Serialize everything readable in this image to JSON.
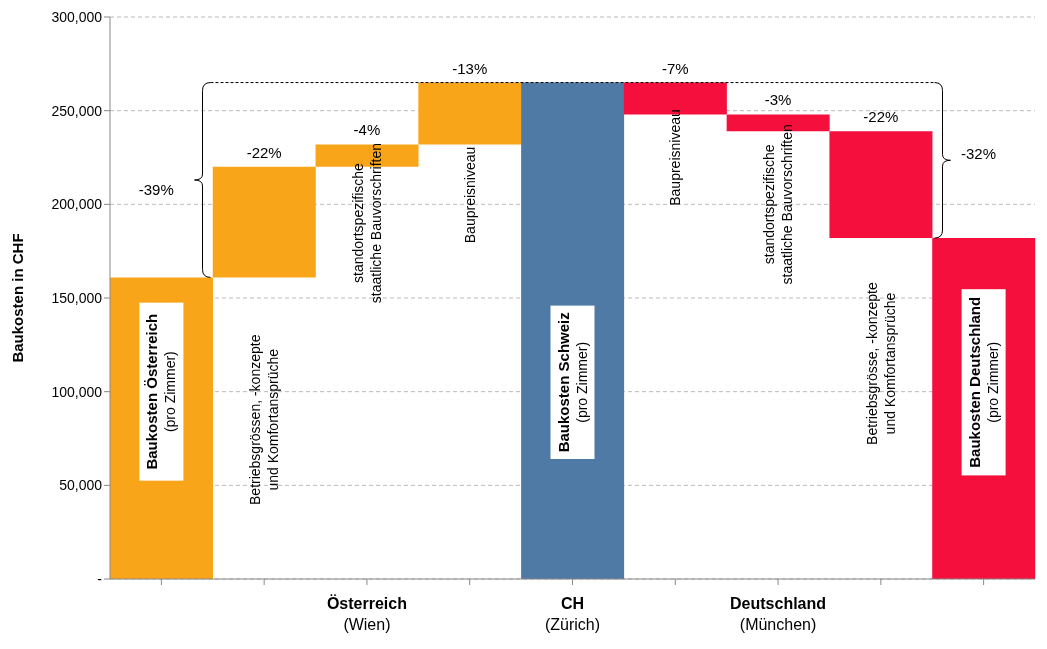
{
  "chart_data": {
    "type": "bar",
    "ylabel": "Baukosten in CHF",
    "categories": [
      null,
      null,
      "Österreich\n(Wien)",
      null,
      "CH\n(Zürich)",
      null,
      "Deutschland\n(München)",
      null,
      null
    ],
    "values": [
      161000,
      59000,
      12000,
      33000,
      265000,
      17000,
      9000,
      57000,
      182000
    ],
    "base": [
      0,
      161000,
      220000,
      232000,
      0,
      248000,
      239000,
      182000,
      0
    ],
    "colors": [
      "#f9a51a",
      "#f9a51a",
      "#f9a51a",
      "#f9a51a",
      "#4f7aa6",
      "#f50f3d",
      "#f50f3d",
      "#f50f3d",
      "#f50f3d"
    ],
    "ref_lines": [
      {
        "axis": "y",
        "value": 265000,
        "line_style": "dashed",
        "color": "#000000"
      }
    ],
    "ylim": [
      0,
      300000
    ],
    "yticks": [
      {
        "value": 0,
        "label": "-"
      },
      {
        "value": 50000,
        "label": "50,000"
      },
      {
        "value": 100000,
        "label": "100,000"
      },
      {
        "value": 150000,
        "label": "150,000"
      },
      {
        "value": 200000,
        "label": "200,000"
      },
      {
        "value": 250000,
        "label": "250,000"
      },
      {
        "value": 300000,
        "label": "300,000"
      }
    ],
    "grid": "y",
    "annotations": [
      "Baukosten Österreich\n(pro Zimmer)",
      "Betriebsgrössen, -konzepte\nund Komfortansprüche",
      "standortspezifische\nstaatliche Bauvorschriften",
      "Baupreisniveau",
      "Baukosten Schweiz\n(pro Zimmer)",
      "Baupreisniveau",
      "standortspezifische\nstaatliche Bauvorschriften",
      "Betriebsgrösse, -konzepte\nund Komfortansprüche",
      "Baukosten Deutschland\n(pro Zimmer)",
      "-39%",
      "-32%",
      "-22%",
      "-4%",
      "-13%",
      "-7%",
      "-3%",
      "-22%"
    ]
  }
}
